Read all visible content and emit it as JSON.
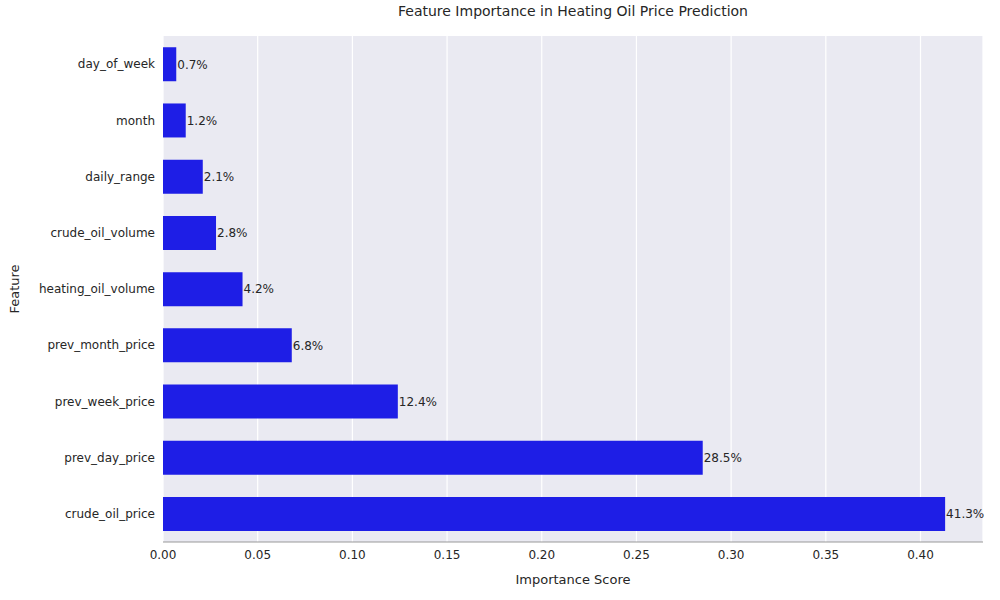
{
  "chart_data": {
    "type": "bar",
    "title": "Feature Importance in Heating Oil Price Prediction",
    "x_label": "Importance Score",
    "y_label": "Feature",
    "orientation": "horizontal",
    "categories": [
      "day_of_week",
      "month",
      "daily_range",
      "crude_oil_volume",
      "heating_oil_volume",
      "prev_month_price",
      "prev_week_price",
      "prev_day_price",
      "crude_oil_price"
    ],
    "values": [
      0.007,
      0.012,
      0.021,
      0.028,
      0.042,
      0.068,
      0.124,
      0.285,
      0.413
    ],
    "value_labels": [
      "0.7%",
      "1.2%",
      "2.1%",
      "2.8%",
      "4.2%",
      "6.8%",
      "12.4%",
      "28.5%",
      "41.3%"
    ],
    "data_labels": true,
    "color": "#1e1ee6",
    "xlim": [
      0,
      0.433
    ],
    "xticks": [
      {
        "value": 0,
        "label": "0.00"
      },
      {
        "value": 0.05,
        "label": "0.05"
      },
      {
        "value": 0.1,
        "label": "0.10"
      },
      {
        "value": 0.15,
        "label": "0.15"
      },
      {
        "value": 0.2,
        "label": "0.20"
      },
      {
        "value": 0.25,
        "label": "0.25"
      },
      {
        "value": 0.3,
        "label": "0.30"
      },
      {
        "value": 0.35,
        "label": "0.35"
      },
      {
        "value": 0.4,
        "label": "0.40"
      }
    ],
    "grid": true
  }
}
